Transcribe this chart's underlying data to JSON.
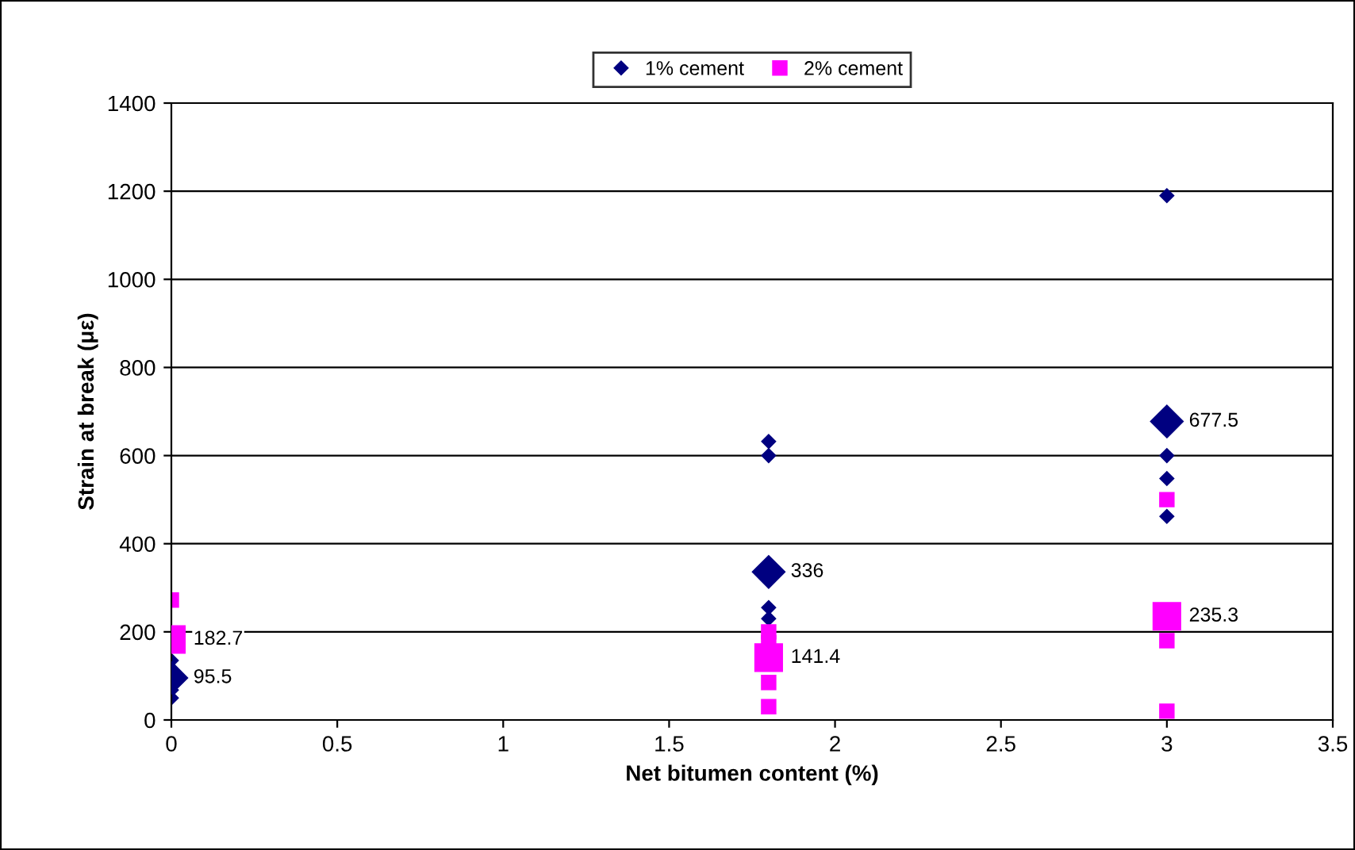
{
  "chart_data": {
    "type": "scatter",
    "xlabel": "Net bitumen content (%)",
    "ylabel": "Strain at break (με)",
    "xlim": [
      0,
      3.5
    ],
    "xticks": [
      0,
      0.5,
      1,
      1.5,
      2,
      2.5,
      3,
      3.5
    ],
    "ylim": [
      0,
      1400
    ],
    "yticks": [
      0,
      200,
      400,
      600,
      800,
      1000,
      1200,
      1400
    ],
    "grid": "y",
    "legend": "top",
    "series": [
      {
        "name": "1% cement",
        "color": "#000080",
        "marker": "diamond",
        "x": [
          0,
          0,
          0,
          1.8,
          1.8,
          1.8,
          1.8,
          3,
          3,
          3,
          3
        ],
        "values": [
          50,
          68,
          135,
          632,
          600,
          255,
          230,
          1190,
          600,
          548,
          462
        ]
      },
      {
        "name": "2% cement",
        "color": "#ff00ff",
        "marker": "square",
        "x": [
          0,
          1.8,
          1.8,
          1.8,
          1.8,
          3,
          3,
          3
        ],
        "values": [
          272,
          200,
          175,
          85,
          30,
          500,
          180,
          20
        ]
      },
      {
        "color": "#000080",
        "marker": "diamond",
        "x": [
          0,
          1.8,
          3
        ],
        "values": [
          95.5,
          336,
          677.5
        ],
        "value_labels": [
          "95.5",
          "336",
          "677.5"
        ]
      },
      {
        "color": "#ff00ff",
        "marker": "square",
        "x": [
          0,
          1.8,
          3
        ],
        "values": [
          182.7,
          141.4,
          235.3
        ],
        "value_labels": [
          "182.7",
          "141.4",
          "235.3"
        ]
      }
    ]
  }
}
